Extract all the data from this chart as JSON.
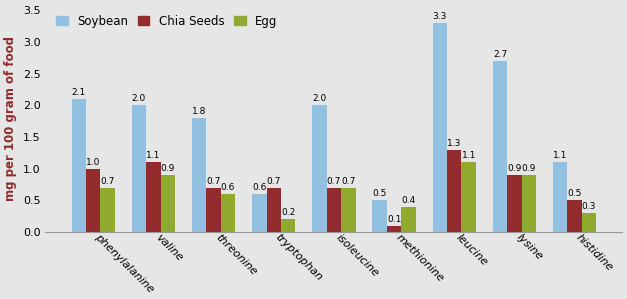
{
  "categories": [
    "phenylalanine",
    "valine",
    "threonine",
    "tryptophan",
    "isoleucine",
    "methionine",
    "leucine",
    "lysine",
    "histidine"
  ],
  "series": {
    "Soybean": [
      2.1,
      2.0,
      1.8,
      0.6,
      2.0,
      0.5,
      3.3,
      2.7,
      1.1
    ],
    "Chia Seeds": [
      1.0,
      1.1,
      0.7,
      0.7,
      0.7,
      0.1,
      1.3,
      0.9,
      0.5
    ],
    "Egg": [
      0.7,
      0.9,
      0.6,
      0.2,
      0.7,
      0.4,
      1.1,
      0.9,
      0.3
    ]
  },
  "colors": {
    "Soybean": "#92c0e0",
    "Chia Seeds": "#922b2b",
    "Egg": "#8faa2e"
  },
  "ylabel": "mg per 100 gram of food",
  "ylim": [
    0,
    3.6
  ],
  "yticks": [
    0,
    0.5,
    1.0,
    1.5,
    2.0,
    2.5,
    3.0,
    3.5
  ],
  "background_color": "#e6e6e6",
  "bar_width": 0.24,
  "label_fontsize": 6.5,
  "axis_fontsize": 8.5,
  "legend_fontsize": 8.5,
  "tick_fontsize": 8
}
